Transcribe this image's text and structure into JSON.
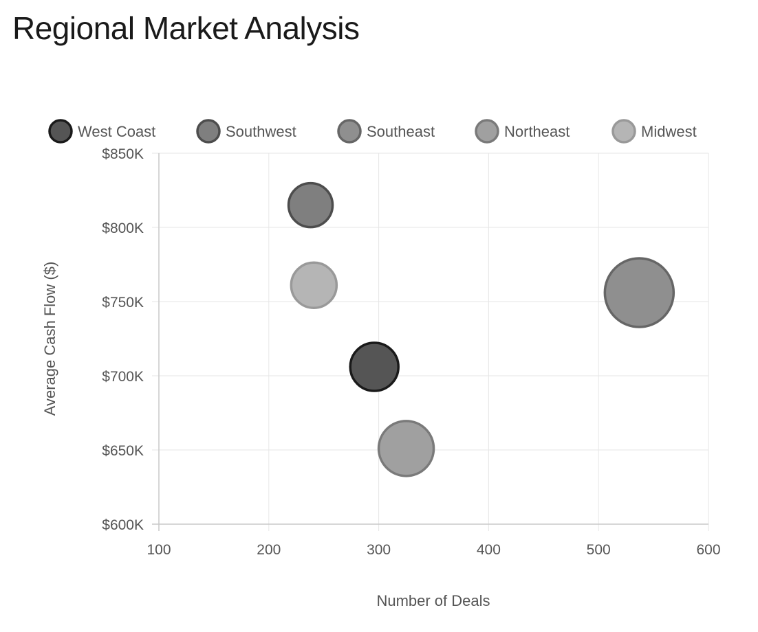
{
  "chart_data": {
    "type": "bubble",
    "title": "Regional Market Analysis",
    "xlabel": "Number of Deals",
    "ylabel": "Average Cash Flow ($)",
    "xlim": [
      100,
      600
    ],
    "ylim": [
      600000,
      850000
    ],
    "x_ticks": [
      "100",
      "200",
      "300",
      "400",
      "500",
      "600"
    ],
    "y_ticks": [
      "$600K",
      "$650K",
      "$700K",
      "$750K",
      "$800K",
      "$850K"
    ],
    "grid": true,
    "legend_position": "top",
    "series": [
      {
        "name": "West Coast",
        "x": 296,
        "y": 706000,
        "size": 35,
        "color": "#555555",
        "border": "#1a1a1a"
      },
      {
        "name": "Southwest",
        "x": 238,
        "y": 815000,
        "size": 32,
        "color": "#7f7f7f",
        "border": "#4d4d4d"
      },
      {
        "name": "Southeast",
        "x": 537,
        "y": 756000,
        "size": 50,
        "color": "#8f8f8f",
        "border": "#666666"
      },
      {
        "name": "Northeast",
        "x": 325,
        "y": 651000,
        "size": 40,
        "color": "#a0a0a0",
        "border": "#7a7a7a"
      },
      {
        "name": "Midwest",
        "x": 241,
        "y": 761000,
        "size": 33,
        "color": "#b5b5b5",
        "border": "#999999"
      }
    ]
  }
}
